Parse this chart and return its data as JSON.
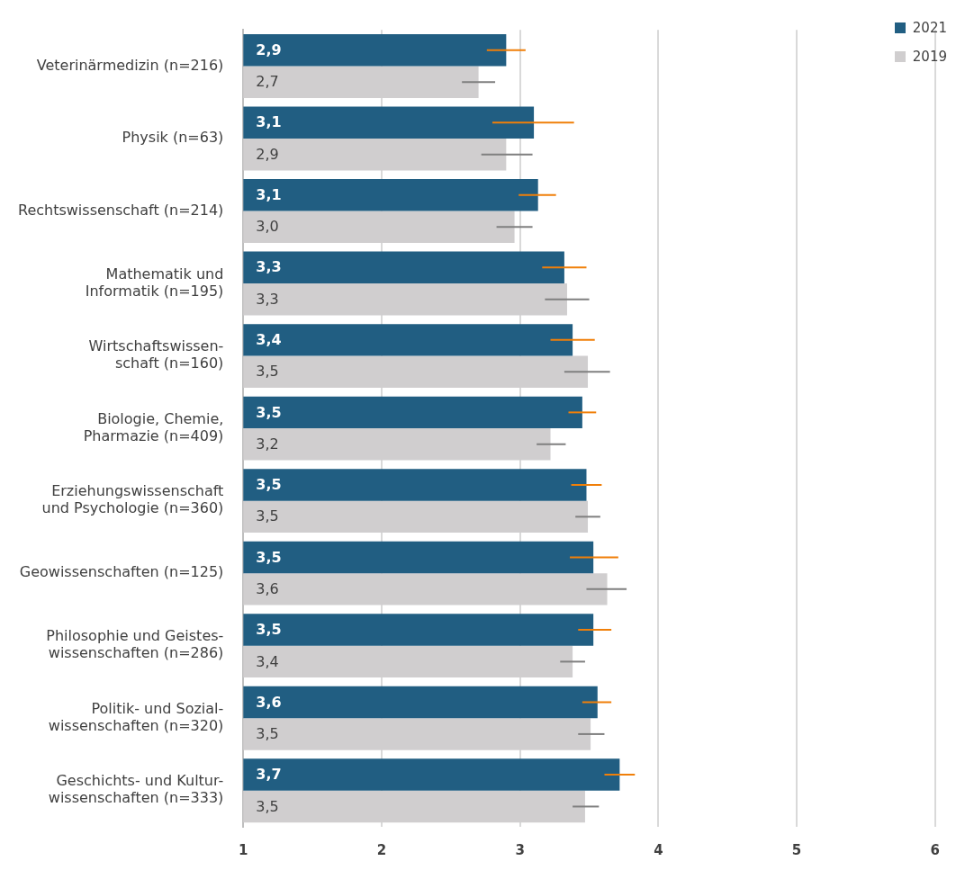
{
  "chart_data": {
    "type": "bar",
    "orientation": "horizontal",
    "categories": [
      "Veterinärmedizin (n=216)",
      "Physik (n=63)",
      "Rechtswissenschaft (n=214)",
      "Mathematik und\nInformatik (n=195)",
      "Wirtschaftswissen-\nschaft (n=160)",
      "Biologie, Chemie,\nPharmazie (n=409)",
      "Erziehungswissenschaft\nund Psychologie (n=360)",
      "Geowissenschaften (n=125)",
      "Philosophie und Geistes-\nwissenschaften (n=286)",
      "Politik- und Sozial-\nwissenschaften (n=320)",
      "Geschichts- und Kultur-\nwissenschaften (n=333)"
    ],
    "series": [
      {
        "name": "2021",
        "color": "#215e82",
        "values": [
          2.9,
          3.1,
          3.13,
          3.32,
          3.38,
          3.45,
          3.48,
          3.53,
          3.53,
          3.56,
          3.72
        ],
        "value_labels": [
          "2,9",
          "3,1",
          "3,1",
          "3,3",
          "3,4",
          "3,5",
          "3,5",
          "3,5",
          "3,5",
          "3,6",
          "3,7"
        ],
        "errors": [
          [
            2.76,
            3.04
          ],
          [
            2.8,
            3.39
          ],
          [
            2.99,
            3.26
          ],
          [
            3.16,
            3.48
          ],
          [
            3.22,
            3.54
          ],
          [
            3.35,
            3.55
          ],
          [
            3.37,
            3.59
          ],
          [
            3.36,
            3.71
          ],
          [
            3.42,
            3.66
          ],
          [
            3.45,
            3.66
          ],
          [
            3.61,
            3.83
          ]
        ]
      },
      {
        "name": "2019",
        "color": "#d0cecf",
        "values": [
          2.7,
          2.9,
          2.96,
          3.34,
          3.49,
          3.22,
          3.49,
          3.63,
          3.38,
          3.51,
          3.47
        ],
        "value_labels": [
          "2,7",
          "2,9",
          "3,0",
          "3,3",
          "3,5",
          "3,2",
          "3,5",
          "3,6",
          "3,4",
          "3,5",
          "3,5"
        ],
        "errors": [
          [
            2.58,
            2.82
          ],
          [
            2.72,
            3.09
          ],
          [
            2.83,
            3.09
          ],
          [
            3.18,
            3.5
          ],
          [
            3.32,
            3.65
          ],
          [
            3.12,
            3.33
          ],
          [
            3.4,
            3.58
          ],
          [
            3.48,
            3.77
          ],
          [
            3.29,
            3.47
          ],
          [
            3.42,
            3.61
          ],
          [
            3.38,
            3.57
          ]
        ]
      }
    ],
    "xlim": [
      1,
      6
    ],
    "xticks": [
      1,
      2,
      3,
      4,
      5,
      6
    ],
    "grid": "x",
    "legend": "top right"
  }
}
